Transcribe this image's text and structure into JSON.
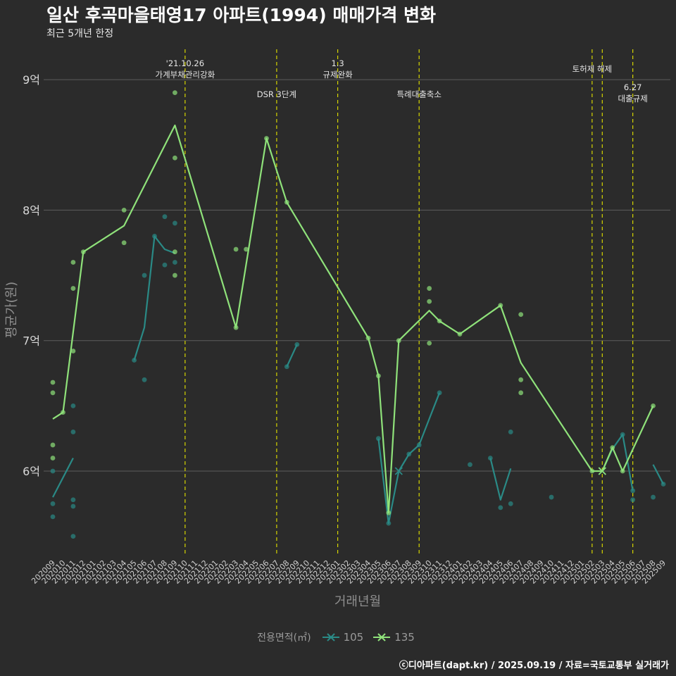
{
  "header": {
    "title": "일산 후곡마을태영17 아파트(1994) 매매가격 변화",
    "subtitle": "최근 5개년 한정"
  },
  "footer": {
    "caption": "ⓒ디아파트(dapt.kr) / 2025.09.19 / 자료=국토교통부 실거래가"
  },
  "legend": {
    "title": "전용면적(㎡)",
    "items": [
      {
        "label": "105",
        "color": "#2a8a86"
      },
      {
        "label": "135",
        "color": "#8fe27a"
      }
    ]
  },
  "chart_data": {
    "type": "line",
    "title": "일산 후곡마을태영17 아파트(1994) 매매가격 변화",
    "xlabel": "거래년월",
    "ylabel": "평균가(원)",
    "ylim": [
      5.3,
      9.3
    ],
    "yticks": [
      {
        "value": 6,
        "label": "6억"
      },
      {
        "value": 7,
        "label": "7억"
      },
      {
        "value": 8,
        "label": "8억"
      },
      {
        "value": 9,
        "label": "9억"
      }
    ],
    "categories": [
      "202009",
      "202010",
      "202011",
      "202012",
      "202101",
      "202102",
      "202103",
      "202104",
      "202105",
      "202106",
      "202107",
      "202108",
      "202109",
      "202110",
      "202111",
      "202112",
      "202201",
      "202202",
      "202203",
      "202204",
      "202205",
      "202206",
      "202207",
      "202208",
      "202209",
      "202210",
      "202211",
      "202212",
      "202301",
      "202302",
      "202303",
      "202304",
      "202305",
      "202306",
      "202307",
      "202308",
      "202309",
      "202310",
      "202311",
      "202312",
      "202401",
      "202402",
      "202403",
      "202404",
      "202405",
      "202406",
      "202407",
      "202408",
      "202409",
      "202410",
      "202411",
      "202412",
      "202501",
      "202502",
      "202503",
      "202504",
      "202505",
      "202506",
      "202507",
      "202508",
      "202509"
    ],
    "series": [
      {
        "name": "105",
        "color": "#2a8a86",
        "lines": [
          [
            [
              0,
              5.8
            ],
            [
              2,
              6.1
            ]
          ],
          [
            [
              8,
              6.85
            ],
            [
              9,
              7.1
            ],
            [
              10,
              7.8
            ],
            [
              11,
              7.7
            ],
            [
              12,
              7.67
            ]
          ],
          [
            [
              23,
              6.8
            ],
            [
              24,
              6.97
            ]
          ],
          [
            [
              32,
              6.25
            ],
            [
              33,
              5.6
            ],
            [
              34,
              6.0
            ],
            [
              35,
              6.13
            ],
            [
              36,
              6.2
            ],
            [
              37,
              6.4
            ],
            [
              38,
              6.6
            ]
          ],
          [
            [
              43,
              6.1
            ],
            [
              44,
              5.78
            ],
            [
              45,
              6.02
            ]
          ],
          [
            [
              54,
              6.0
            ],
            [
              55,
              6.17
            ],
            [
              56,
              6.28
            ],
            [
              57,
              5.85
            ]
          ],
          [
            [
              59,
              6.05
            ],
            [
              60,
              5.9
            ]
          ]
        ],
        "points": [
          [
            0,
            5.65
          ],
          [
            0,
            5.75
          ],
          [
            0,
            6.0
          ],
          [
            2,
            5.5
          ],
          [
            2,
            5.73
          ],
          [
            2,
            5.78
          ],
          [
            2,
            6.3
          ],
          [
            2,
            6.5
          ],
          [
            8,
            6.85
          ],
          [
            9,
            6.7
          ],
          [
            9,
            7.5
          ],
          [
            10,
            7.8
          ],
          [
            11,
            7.58
          ],
          [
            11,
            7.95
          ],
          [
            12,
            7.6
          ],
          [
            12,
            7.9
          ],
          [
            23,
            6.8
          ],
          [
            24,
            6.97
          ],
          [
            32,
            6.25
          ],
          [
            33,
            5.6
          ],
          [
            35,
            6.13
          ],
          [
            36,
            6.2
          ],
          [
            38,
            6.6
          ],
          [
            41,
            6.05
          ],
          [
            43,
            6.1
          ],
          [
            44,
            5.72
          ],
          [
            45,
            5.75
          ],
          [
            45,
            6.3
          ],
          [
            49,
            5.8
          ],
          [
            56,
            6.28
          ],
          [
            57,
            5.78
          ],
          [
            57,
            5.85
          ],
          [
            59,
            5.8
          ],
          [
            60,
            5.9
          ]
        ],
        "cross_points": [
          [
            34,
            6.0
          ],
          [
            54,
            6.0
          ]
        ]
      },
      {
        "name": "135",
        "color": "#8fe27a",
        "lines": [
          [
            [
              0,
              6.4
            ],
            [
              1,
              6.45
            ],
            [
              3,
              7.68
            ],
            [
              7,
              7.88
            ],
            [
              12,
              8.65
            ],
            [
              18,
              7.1
            ],
            [
              21,
              8.55
            ],
            [
              23,
              8.06
            ],
            [
              31,
              7.02
            ],
            [
              32,
              6.73
            ],
            [
              33,
              5.68
            ],
            [
              34,
              7.0
            ],
            [
              37,
              7.23
            ],
            [
              38,
              7.15
            ],
            [
              40,
              7.05
            ],
            [
              44,
              7.27
            ],
            [
              46,
              6.83
            ],
            [
              53,
              6.0
            ],
            [
              54,
              6.0
            ],
            [
              55,
              6.18
            ],
            [
              56,
              6.0
            ],
            [
              59,
              6.5
            ]
          ]
        ],
        "points": [
          [
            0,
            6.1
          ],
          [
            0,
            6.2
          ],
          [
            0,
            6.6
          ],
          [
            0,
            6.68
          ],
          [
            1,
            6.45
          ],
          [
            2,
            6.92
          ],
          [
            2,
            7.4
          ],
          [
            2,
            7.6
          ],
          [
            3,
            7.68
          ],
          [
            7,
            7.75
          ],
          [
            7,
            8.0
          ],
          [
            12,
            7.5
          ],
          [
            12,
            7.68
          ],
          [
            12,
            8.4
          ],
          [
            12,
            8.9
          ],
          [
            18,
            7.1
          ],
          [
            18,
            7.7
          ],
          [
            19,
            7.7
          ],
          [
            21,
            8.55
          ],
          [
            23,
            8.06
          ],
          [
            31,
            7.02
          ],
          [
            32,
            6.73
          ],
          [
            33,
            5.68
          ],
          [
            34,
            7.0
          ],
          [
            37,
            6.98
          ],
          [
            37,
            7.3
          ],
          [
            37,
            7.4
          ],
          [
            38,
            7.15
          ],
          [
            40,
            7.05
          ],
          [
            44,
            7.27
          ],
          [
            46,
            6.6
          ],
          [
            46,
            6.7
          ],
          [
            46,
            7.2
          ],
          [
            53,
            6.0
          ],
          [
            55,
            6.18
          ],
          [
            56,
            6.0
          ],
          [
            59,
            6.5
          ]
        ],
        "cross_points": [
          [
            54,
            6.0
          ]
        ]
      }
    ],
    "events": [
      {
        "index": 13,
        "label_lines": [
          "'21.10.26",
          "가계부채관리강화"
        ],
        "row": "top"
      },
      {
        "index": 22,
        "label_lines": [
          "DSR 3단계"
        ],
        "row": "low"
      },
      {
        "index": 28,
        "label_lines": [
          "1.3",
          "규제완화"
        ],
        "row": "top"
      },
      {
        "index": 36,
        "label_lines": [
          "특례대출축소"
        ],
        "row": "low"
      },
      {
        "index": 53,
        "label_lines": [
          "토허제 해제"
        ],
        "row": "mid"
      },
      {
        "index": 54,
        "label_lines": [],
        "row": "mid"
      },
      {
        "index": 57,
        "label_lines": [
          "6.27",
          "대출규제"
        ],
        "row": "low"
      }
    ]
  }
}
